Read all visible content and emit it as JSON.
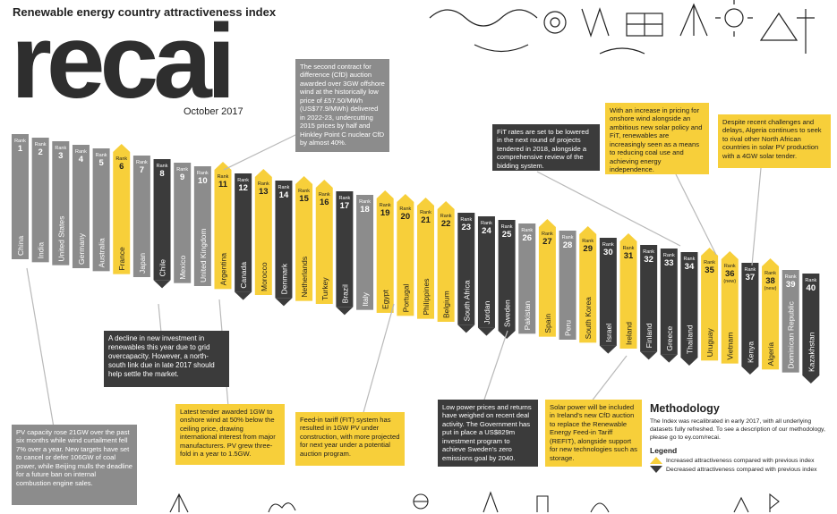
{
  "header": {
    "subtitle": "Renewable energy country attractiveness index",
    "logo": "recai",
    "date": "October 2017"
  },
  "colors": {
    "increased": "#f7cf3a",
    "decreased": "#3b3b3b",
    "unchanged": "#8c8c8c"
  },
  "chart_data": {
    "type": "ranking",
    "title": "Renewable energy country attractiveness index",
    "rank_label": "Rank",
    "new_label": "(new)",
    "countries": [
      {
        "rank": 1,
        "country": "China",
        "change": "same"
      },
      {
        "rank": 2,
        "country": "India",
        "change": "same"
      },
      {
        "rank": 3,
        "country": "United States",
        "change": "same"
      },
      {
        "rank": 4,
        "country": "Germany",
        "change": "same"
      },
      {
        "rank": 5,
        "country": "Australia",
        "change": "same"
      },
      {
        "rank": 6,
        "country": "France",
        "change": "up"
      },
      {
        "rank": 7,
        "country": "Japan",
        "change": "same"
      },
      {
        "rank": 8,
        "country": "Chile",
        "change": "down"
      },
      {
        "rank": 9,
        "country": "Mexico",
        "change": "same"
      },
      {
        "rank": 10,
        "country": "United Kingdom",
        "change": "same"
      },
      {
        "rank": 11,
        "country": "Argentina",
        "change": "up"
      },
      {
        "rank": 12,
        "country": "Canada",
        "change": "down"
      },
      {
        "rank": 13,
        "country": "Morocco",
        "change": "up"
      },
      {
        "rank": 14,
        "country": "Denmark",
        "change": "down"
      },
      {
        "rank": 15,
        "country": "Netherlands",
        "change": "up"
      },
      {
        "rank": 16,
        "country": "Turkey",
        "change": "up"
      },
      {
        "rank": 17,
        "country": "Brazil",
        "change": "down"
      },
      {
        "rank": 18,
        "country": "Italy",
        "change": "same"
      },
      {
        "rank": 19,
        "country": "Egypt",
        "change": "up"
      },
      {
        "rank": 20,
        "country": "Portugal",
        "change": "up"
      },
      {
        "rank": 21,
        "country": "Philippines",
        "change": "up"
      },
      {
        "rank": 22,
        "country": "Belgium",
        "change": "up"
      },
      {
        "rank": 23,
        "country": "South Africa",
        "change": "down"
      },
      {
        "rank": 24,
        "country": "Jordan",
        "change": "down"
      },
      {
        "rank": 25,
        "country": "Sweden",
        "change": "down"
      },
      {
        "rank": 26,
        "country": "Pakistan",
        "change": "same"
      },
      {
        "rank": 27,
        "country": "Spain",
        "change": "up"
      },
      {
        "rank": 28,
        "country": "Peru",
        "change": "same"
      },
      {
        "rank": 29,
        "country": "South Korea",
        "change": "up"
      },
      {
        "rank": 30,
        "country": "Israel",
        "change": "down"
      },
      {
        "rank": 31,
        "country": "Ireland",
        "change": "up"
      },
      {
        "rank": 32,
        "country": "Finland",
        "change": "down"
      },
      {
        "rank": 33,
        "country": "Greece",
        "change": "down"
      },
      {
        "rank": 34,
        "country": "Thailand",
        "change": "down"
      },
      {
        "rank": 35,
        "country": "Uruguay",
        "change": "up"
      },
      {
        "rank": 36,
        "country": "Vietnam",
        "change": "up",
        "new": true
      },
      {
        "rank": 37,
        "country": "Kenya",
        "change": "down"
      },
      {
        "rank": 38,
        "country": "Algeria",
        "change": "up",
        "new": true
      },
      {
        "rank": 39,
        "country": "Dominican Republic",
        "change": "same"
      },
      {
        "rank": 40,
        "country": "Kazakhstan",
        "change": "down"
      }
    ]
  },
  "callouts": {
    "uk": "The second contract for difference (CfD) auction awarded over 3GW offshore wind at the historically low price of £57.50/MWh (US$77.9/MWh) delivered in 2022-23, undercutting 2015 prices by half and Hinkley Point C nuclear CfD by almost 40%.",
    "chile": "A decline in new investment in renewables this year due to grid overcapacity. However, a north-south link due in late 2017 should help settle the market.",
    "china": "PV capacity rose 21GW over the past six months while wind curtailment fell 7% over a year. New targets have set to cancel or defer 106GW of coal power, while Beijing mulls the deadline for a future ban on internal combustion engine sales.",
    "argentina": "Latest tender awarded 1GW to onshore wind at 50% below the ceiling price, drawing international interest from major manufacturers. PV grew three-fold in a year to 1.5GW.",
    "egypt": "Feed-in tariff (FIT) system has resulted in 1GW PV under construction, with more projected for next year under a potential auction program.",
    "sweden": "Low power prices and returns have weighed on recent deal activity. The Government has put in place a US$829m investment program to achieve Sweden's zero emissions goal by 2040.",
    "ireland": "Solar power will be included in Ireland's new CfD auction to replace the Renewable Energy Feed-in Tariff (REFIT), alongside support for new technologies such as storage.",
    "southafrica": "FiT rates are set to be lowered in the next round of projects tendered in 2018, alongside a comprehensive review of the bidding system.",
    "uruguay": "With an increase in pricing for onshore wind alongside an ambitious new solar policy and FiT, renewables are increasingly seen as a means to reducing coal use and achieving energy independence.",
    "algeria": "Despite recent challenges and delays, Algeria continues to seek to rival other North African countries in solar PV production with a 4GW solar tender."
  },
  "methodology": {
    "title": "Methodology",
    "text": "The Index was recalibrated in early 2017, with all underlying datasets fully refreshed. To see a description of our methodology, please go to ey.com/recai.",
    "legend_title": "Legend",
    "legend_up": "Increased attractiveness compared with previous index",
    "legend_down": "Decreased attractiveness compared with previous index"
  }
}
